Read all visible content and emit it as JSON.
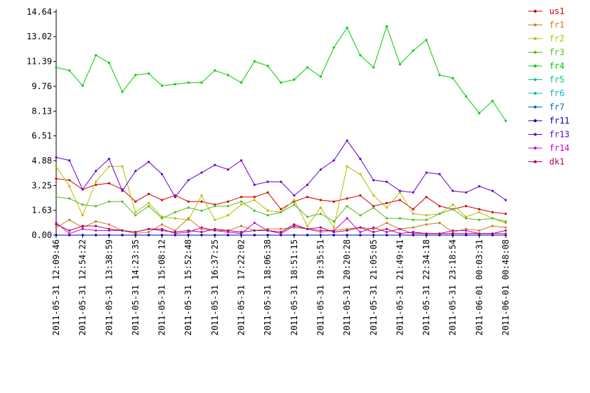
{
  "chart_data": {
    "type": "line",
    "categories": [
      "2011-05-31 12:09:46",
      null,
      "2011-05-31 12:54:22",
      null,
      "2011-05-31 13:38:59",
      null,
      "2011-05-31 14:23:35",
      null,
      "2011-05-31 15:08:12",
      null,
      "2011-05-31 15:52:48",
      null,
      "2011-05-31 16:37:25",
      null,
      "2011-05-31 17:22:02",
      null,
      "2011-05-31 18:06:38",
      null,
      "2011-05-31 18:51:15",
      null,
      "2011-05-31 19:35:51",
      null,
      "2011-05-31 20:20:28",
      null,
      "2011-05-31 21:05:05",
      null,
      "2011-05-31 21:49:41",
      null,
      "2011-05-31 22:34:18",
      null,
      "2011-05-31 23:18:54",
      null,
      "2011-06-01 00:03:31",
      null,
      "2011-06-01 00:48:08"
    ],
    "ylim": [
      0,
      14.64
    ],
    "yticks": [
      {
        "value": 0,
        "label": "0.00"
      },
      1.63,
      3.25,
      4.88,
      6.51,
      8.13,
      9.76,
      11.39,
      13.02,
      14.64
    ],
    "legend": "top-right",
    "series": [
      {
        "name": "us1",
        "color": "#cc0000",
        "values": [
          3.7,
          3.6,
          3.0,
          3.3,
          3.4,
          3.0,
          2.2,
          2.7,
          2.3,
          2.6,
          2.2,
          2.2,
          2.0,
          2.2,
          2.5,
          2.5,
          2.8,
          1.7,
          2.2,
          2.5,
          2.3,
          2.2,
          2.4,
          2.6,
          1.9,
          2.1,
          2.3,
          1.7,
          2.5,
          1.9,
          1.7,
          1.9,
          1.7,
          1.5,
          1.4
        ]
      },
      {
        "name": "fr1",
        "color": "#cc7722",
        "values": [
          0.5,
          1.0,
          0.5,
          0.9,
          0.7,
          0.3,
          0.1,
          0.2,
          0.7,
          0.3,
          1.1,
          0.4,
          0.3,
          0.3,
          0.6,
          0.3,
          0.4,
          0.4,
          0.5,
          0.4,
          0.2,
          0.3,
          0.4,
          0.5,
          0.4,
          0.8,
          0.4,
          0.5,
          0.7,
          0.8,
          0.2,
          0.4,
          0.3,
          0.6,
          0.5
        ]
      },
      {
        "name": "fr2",
        "color": "#bbbb00",
        "values": [
          4.5,
          3.2,
          1.3,
          3.5,
          4.5,
          4.5,
          1.5,
          2.1,
          1.2,
          1.1,
          1.0,
          2.6,
          1.0,
          1.3,
          2.0,
          2.3,
          1.6,
          1.5,
          2.3,
          0.6,
          1.8,
          0.5,
          4.5,
          4.0,
          2.6,
          1.8,
          2.8,
          1.4,
          1.3,
          1.4,
          2.0,
          1.2,
          1.5,
          1.1,
          0.8
        ]
      },
      {
        "name": "fr3",
        "color": "#55bb22",
        "values": [
          2.5,
          2.4,
          2.0,
          1.9,
          2.2,
          2.2,
          1.3,
          1.9,
          1.1,
          1.5,
          1.8,
          1.6,
          1.9,
          1.9,
          2.2,
          1.6,
          1.3,
          1.5,
          2.0,
          1.2,
          1.4,
          0.9,
          1.9,
          1.3,
          1.8,
          1.1,
          1.1,
          1.0,
          1.0,
          1.4,
          1.7,
          1.1,
          1.0,
          1.1,
          0.9
        ]
      },
      {
        "name": "fr4",
        "color": "#00cc00",
        "values": [
          11.0,
          10.8,
          9.8,
          11.8,
          11.3,
          9.4,
          10.5,
          10.6,
          9.8,
          9.9,
          10.0,
          10.0,
          10.8,
          10.5,
          10.0,
          11.4,
          11.1,
          10.0,
          10.2,
          11.0,
          10.4,
          12.3,
          13.6,
          11.8,
          11.0,
          13.7,
          11.2,
          12.1,
          12.8,
          10.5,
          10.3,
          9.1,
          8.0,
          8.8,
          7.5
        ]
      },
      {
        "name": "fr5",
        "color": "#00cc77",
        "values": [
          0,
          0,
          0,
          0,
          0,
          0,
          0,
          0,
          0,
          0,
          0,
          0,
          0,
          0,
          0,
          0,
          0,
          0,
          0,
          0,
          0,
          0,
          0,
          0,
          0,
          0,
          0,
          0,
          0,
          0,
          0,
          0,
          0,
          0,
          0
        ]
      },
      {
        "name": "fr6",
        "color": "#00bbbb",
        "values": [
          0,
          0,
          0,
          0,
          0,
          0,
          0,
          0,
          0,
          0,
          0,
          0,
          0,
          0,
          0,
          0,
          0,
          0,
          0,
          0,
          0,
          0,
          0,
          0,
          0,
          0,
          0,
          0,
          0,
          0,
          0,
          0,
          0,
          0,
          0
        ]
      },
      {
        "name": "fr7",
        "color": "#0066bb",
        "values": [
          0,
          0,
          0,
          0,
          0,
          0,
          0,
          0,
          0,
          0,
          0,
          0,
          0,
          0,
          0,
          0,
          0,
          0,
          0,
          0,
          0,
          0,
          0,
          0,
          0,
          0,
          0,
          0,
          0,
          0,
          0,
          0,
          0,
          0,
          0
        ]
      },
      {
        "name": "fr11",
        "color": "#0000aa",
        "values": [
          0,
          0,
          0,
          0,
          0,
          0,
          0,
          0,
          0,
          0,
          0,
          0,
          0,
          0,
          0,
          0,
          0,
          0,
          0,
          0,
          0,
          0,
          0,
          0,
          0,
          0,
          0,
          0,
          0,
          0,
          0,
          0,
          0,
          0,
          0
        ]
      },
      {
        "name": "fr13",
        "color": "#6600cc",
        "values": [
          5.1,
          4.9,
          3.0,
          4.2,
          5.0,
          2.9,
          4.2,
          4.8,
          4.0,
          2.5,
          3.6,
          4.1,
          4.6,
          4.3,
          4.9,
          3.3,
          3.5,
          3.5,
          2.6,
          3.3,
          4.3,
          4.9,
          6.2,
          5.0,
          3.6,
          3.5,
          2.9,
          2.8,
          4.1,
          4.0,
          2.9,
          2.8,
          3.2,
          2.9,
          2.3
        ]
      },
      {
        "name": "fr14",
        "color": "#cc00cc",
        "values": [
          0.8,
          0.1,
          0.4,
          0.3,
          0.3,
          0.3,
          0.2,
          0.4,
          0.4,
          0.1,
          0.2,
          0.5,
          0.3,
          0.2,
          0.1,
          0.8,
          0.3,
          0.1,
          0.6,
          0.4,
          0.3,
          0.3,
          1.1,
          0.2,
          0.5,
          0.2,
          0.4,
          0.1,
          0.1,
          0.1,
          0.3,
          0.3,
          0.1,
          0.1,
          0.1
        ]
      },
      {
        "name": "dk1",
        "color": "#aa0066",
        "values": [
          0.7,
          0.3,
          0.6,
          0.6,
          0.4,
          0.3,
          0.2,
          0.4,
          0.3,
          0.2,
          0.3,
          0.2,
          0.4,
          0.3,
          0.2,
          0.3,
          0.3,
          0.2,
          0.7,
          0.4,
          0.5,
          0.2,
          0.3,
          0.5,
          0.2,
          0.4,
          0.1,
          0.2,
          0.1,
          0.1,
          0.1,
          0.1,
          0.1,
          0.1,
          0.3
        ]
      }
    ]
  }
}
